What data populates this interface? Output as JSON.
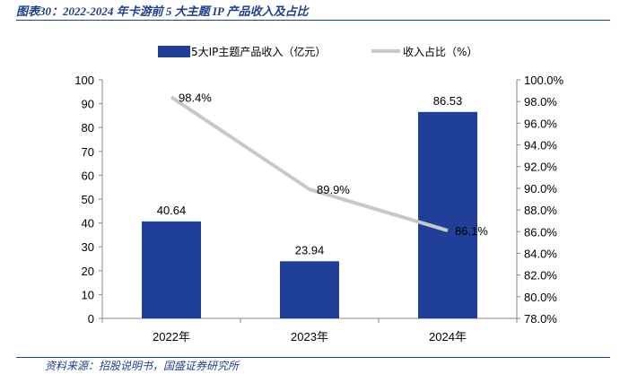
{
  "figure_title": "图表30：2022-2024 年卡游前 5 大主题 IP 产品收入及占比",
  "source_note": "资料来源：招股说明书，国盛证券研究所",
  "colors": {
    "bar": "#1f3f99",
    "line": "#c8c8c8",
    "title": "#1f3f8f"
  },
  "chart_data": {
    "type": "bar",
    "categories": [
      "2022年",
      "2023年",
      "2024年"
    ],
    "series": [
      {
        "name": "5大IP主题产品收入（亿元）",
        "type": "bar",
        "axis": "left",
        "values": [
          40.64,
          23.94,
          86.53
        ],
        "labels": [
          "40.64",
          "23.94",
          "86.53"
        ]
      },
      {
        "name": "收入占比（%）",
        "type": "line",
        "axis": "right",
        "values": [
          98.4,
          89.9,
          86.1
        ],
        "labels": [
          "98.4%",
          "89.9%",
          "86.1%"
        ]
      }
    ],
    "y_left": {
      "ylim": [
        0,
        100
      ],
      "ticks": [
        "0",
        "10",
        "20",
        "30",
        "40",
        "50",
        "60",
        "70",
        "80",
        "90",
        "100"
      ]
    },
    "y_right": {
      "ylim": [
        78,
        100
      ],
      "ticks": [
        "78.0%",
        "80.0%",
        "82.0%",
        "84.0%",
        "86.0%",
        "88.0%",
        "90.0%",
        "92.0%",
        "94.0%",
        "96.0%",
        "98.0%",
        "100.0%"
      ]
    },
    "legend_position": "top-center",
    "grid": false
  }
}
